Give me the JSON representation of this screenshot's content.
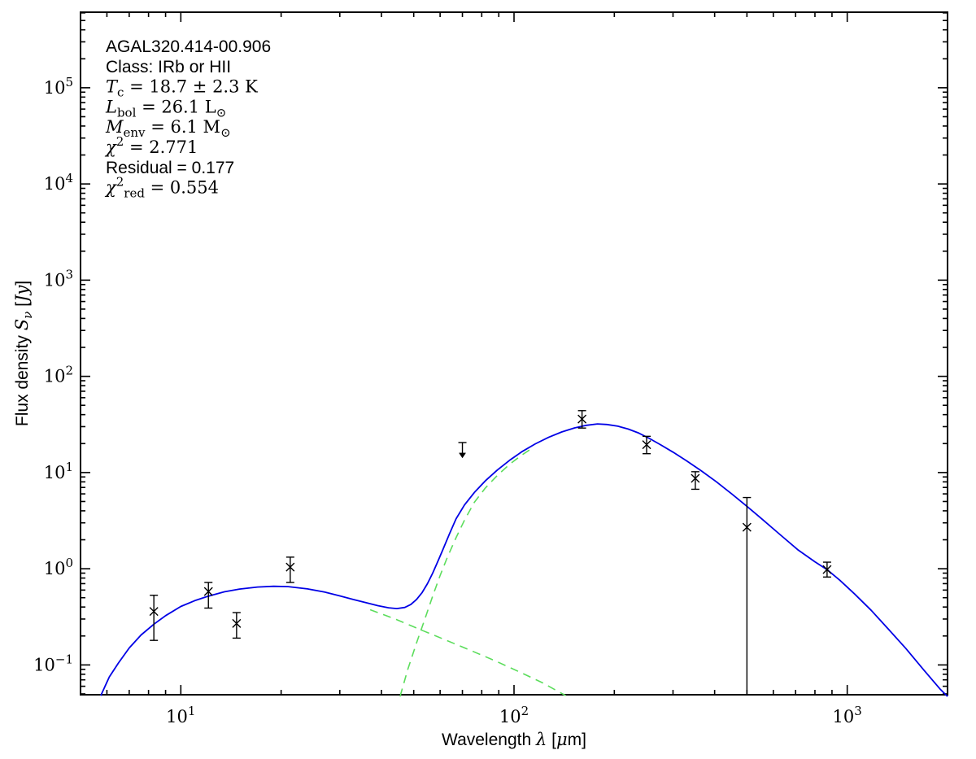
{
  "figure": {
    "background": "#ffffff",
    "frame_color": "#000000",
    "annotation": {
      "lines": [
        [
          [
            "AGAL320.414-00.906",
            "s"
          ]
        ],
        [
          [
            "Class: IRb or HII",
            "s"
          ]
        ],
        [
          [
            "T",
            "i"
          ],
          [
            "c",
            "sub"
          ],
          [
            " = 18.7 ± 2.3 K",
            "r"
          ]
        ],
        [
          [
            "L",
            "i"
          ],
          [
            "bol",
            "sub"
          ],
          [
            " = 26.1 L",
            "r"
          ],
          [
            "⊙",
            "sub"
          ]
        ],
        [
          [
            "M",
            "i"
          ],
          [
            "env",
            "sub"
          ],
          [
            " = 6.1 M",
            "r"
          ],
          [
            "⊙",
            "sub"
          ]
        ],
        [
          [
            "χ",
            "i"
          ],
          [
            "2",
            "sup"
          ],
          [
            " = 2.771",
            "r"
          ]
        ],
        [
          [
            "Residual = 0.177",
            "s"
          ]
        ],
        [
          [
            "χ",
            "i"
          ],
          [
            "2",
            "sup"
          ],
          [
            "red",
            "sub"
          ],
          [
            " = 0.554",
            "r"
          ]
        ]
      ]
    },
    "axes": {
      "xlabel_runs": [
        [
          "Wavelength ",
          "s"
        ],
        [
          "λ",
          "i"
        ],
        [
          " [",
          "s"
        ],
        [
          "μ",
          "i"
        ],
        [
          "m]",
          "s"
        ]
      ],
      "ylabel_runs": [
        [
          "Flux density ",
          "s"
        ],
        [
          "S",
          "i"
        ],
        [
          "ν",
          "isub"
        ],
        [
          " [",
          "s"
        ],
        [
          "Jy",
          "i"
        ],
        [
          "]",
          "s"
        ]
      ],
      "x_major_exps": [
        1,
        2,
        3
      ],
      "y_major_exps": [
        -1,
        0,
        1,
        2,
        3,
        4,
        5
      ]
    },
    "colors": {
      "model_total": "#0000e6",
      "components": "#5cdd5c",
      "data_points": "#000000"
    }
  },
  "chart_data": {
    "type": "line",
    "title": "",
    "xlabel": "Wavelength λ [μm]",
    "ylabel": "Flux density S_ν [Jy]",
    "x_scale": "log",
    "y_scale": "log",
    "xlim": [
      5,
      2000
    ],
    "ylim": [
      0.049,
      610000
    ],
    "grid": false,
    "legend": "none",
    "parameters": {
      "source_name": "AGAL320.414-00.906",
      "class": "IRb or HII",
      "T_c_K": "18.7 ± 2.3",
      "L_bol_Lsun": 26.1,
      "M_env_Msun": 6.1,
      "chi2": 2.771,
      "residual": 0.177,
      "chi2_red": 0.554
    },
    "series": [
      {
        "name": "model_total",
        "style": "solid",
        "color": "#0000e6",
        "points": [
          [
            5.75,
            0.048
          ],
          [
            6.1,
            0.075
          ],
          [
            6.5,
            0.105
          ],
          [
            7.0,
            0.15
          ],
          [
            7.6,
            0.205
          ],
          [
            8.3,
            0.265
          ],
          [
            9.0,
            0.325
          ],
          [
            10,
            0.405
          ],
          [
            11,
            0.465
          ],
          [
            12,
            0.515
          ],
          [
            13.5,
            0.575
          ],
          [
            15,
            0.615
          ],
          [
            17,
            0.645
          ],
          [
            19,
            0.657
          ],
          [
            21,
            0.652
          ],
          [
            24,
            0.617
          ],
          [
            27,
            0.572
          ],
          [
            30,
            0.522
          ],
          [
            33,
            0.478
          ],
          [
            36,
            0.443
          ],
          [
            39,
            0.413
          ],
          [
            42,
            0.393
          ],
          [
            44.5,
            0.385
          ],
          [
            47,
            0.396
          ],
          [
            49,
            0.425
          ],
          [
            51,
            0.48
          ],
          [
            53,
            0.565
          ],
          [
            55,
            0.7
          ],
          [
            57,
            0.9
          ],
          [
            59,
            1.18
          ],
          [
            61,
            1.55
          ],
          [
            64,
            2.3
          ],
          [
            67,
            3.3
          ],
          [
            71,
            4.6
          ],
          [
            76,
            6.2
          ],
          [
            82,
            8.2
          ],
          [
            89,
            10.6
          ],
          [
            97,
            13.4
          ],
          [
            106,
            16.6
          ],
          [
            116,
            19.9
          ],
          [
            127,
            23.2
          ],
          [
            139,
            26.4
          ],
          [
            152,
            29.1
          ],
          [
            165,
            31.0
          ],
          [
            178,
            32.0
          ],
          [
            190,
            31.6
          ],
          [
            205,
            30.3
          ],
          [
            220,
            28.3
          ],
          [
            237,
            25.7
          ],
          [
            255,
            22.6
          ],
          [
            275,
            19.5
          ],
          [
            300,
            16.3
          ],
          [
            330,
            13.2
          ],
          [
            365,
            10.4
          ],
          [
            405,
            8.0
          ],
          [
            450,
            6.0
          ],
          [
            500,
            4.45
          ],
          [
            560,
            3.2
          ],
          [
            630,
            2.25
          ],
          [
            710,
            1.58
          ],
          [
            800,
            1.18
          ],
          [
            870,
            0.98
          ],
          [
            950,
            0.76
          ],
          [
            1050,
            0.55
          ],
          [
            1180,
            0.37
          ],
          [
            1330,
            0.235
          ],
          [
            1500,
            0.148
          ],
          [
            1700,
            0.088
          ],
          [
            1900,
            0.056
          ],
          [
            2000,
            0.047
          ]
        ]
      },
      {
        "name": "component_cold",
        "style": "dashed",
        "color": "#5cdd5c",
        "points": [
          [
            45.5,
            0.047
          ],
          [
            48,
            0.09
          ],
          [
            51,
            0.17
          ],
          [
            54,
            0.3
          ],
          [
            57,
            0.52
          ],
          [
            60,
            0.85
          ],
          [
            63,
            1.3
          ],
          [
            67,
            2.1
          ],
          [
            71,
            3.2
          ],
          [
            76,
            4.9
          ],
          [
            82,
            6.9
          ],
          [
            89,
            9.3
          ],
          [
            97,
            12.2
          ],
          [
            105,
            15.0
          ],
          [
            113,
            17.8
          ]
        ]
      },
      {
        "name": "component_warm",
        "style": "dashed",
        "color": "#5cdd5c",
        "points": [
          [
            37,
            0.375
          ],
          [
            44,
            0.3
          ],
          [
            52,
            0.235
          ],
          [
            62,
            0.183
          ],
          [
            74,
            0.142
          ],
          [
            88,
            0.11
          ],
          [
            105,
            0.083
          ],
          [
            122,
            0.065
          ],
          [
            143,
            0.048
          ]
        ]
      }
    ],
    "data_points": [
      {
        "band_um": 8.3,
        "flux_jy": 0.36,
        "flux_lo": 0.18,
        "flux_hi": 0.53,
        "type": "detection"
      },
      {
        "band_um": 12.1,
        "flux_jy": 0.58,
        "flux_lo": 0.39,
        "flux_hi": 0.72,
        "type": "detection"
      },
      {
        "band_um": 14.7,
        "flux_jy": 0.27,
        "flux_lo": 0.19,
        "flux_hi": 0.35,
        "type": "detection"
      },
      {
        "band_um": 21.3,
        "flux_jy": 1.04,
        "flux_lo": 0.72,
        "flux_hi": 1.32,
        "type": "detection"
      },
      {
        "band_um": 70,
        "flux_jy": 18.0,
        "type": "upper_limit",
        "display_top_jy": 20.5,
        "display_tip_jy": 14.2
      },
      {
        "band_um": 160,
        "flux_jy": 36.0,
        "flux_lo": 29.0,
        "flux_hi": 44.0,
        "type": "detection"
      },
      {
        "band_um": 250,
        "flux_jy": 19.5,
        "flux_lo": 15.7,
        "flux_hi": 23.8,
        "type": "detection"
      },
      {
        "band_um": 350,
        "flux_jy": 8.7,
        "flux_lo": 6.7,
        "flux_hi": 10.2,
        "type": "detection"
      },
      {
        "band_um": 500,
        "flux_jy": 2.7,
        "flux_lo": 0.049,
        "flux_hi": 5.5,
        "type": "detection",
        "lo_clipped": true
      },
      {
        "band_um": 870,
        "flux_jy": 0.98,
        "flux_lo": 0.82,
        "flux_hi": 1.17,
        "type": "detection"
      }
    ]
  }
}
